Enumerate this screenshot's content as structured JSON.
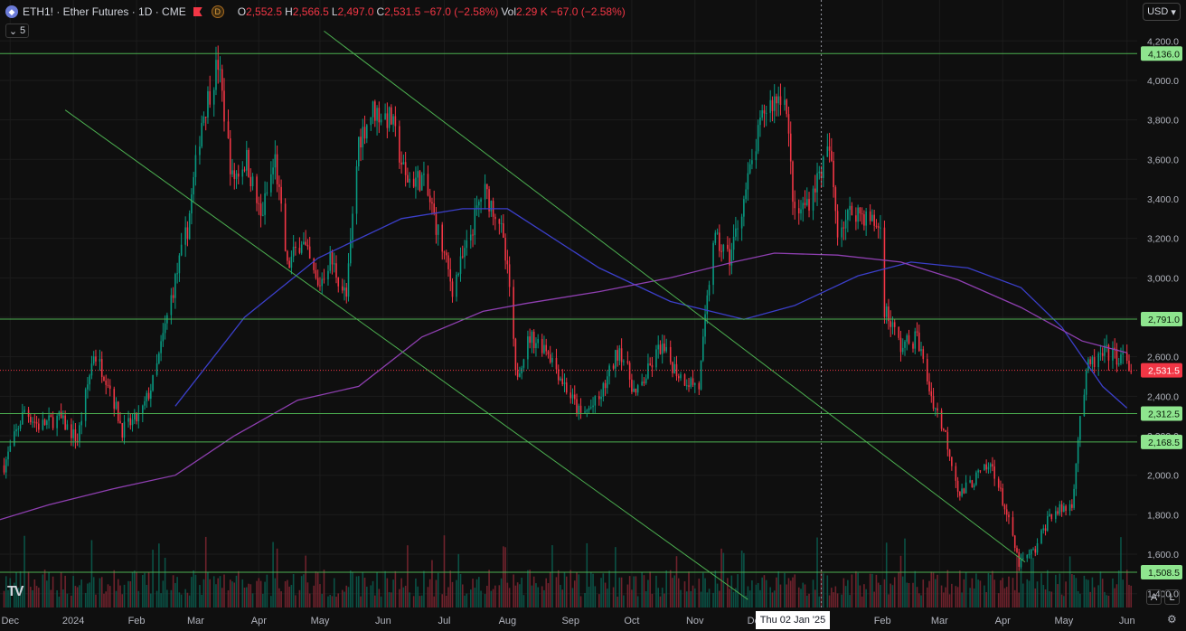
{
  "header": {
    "symbol_title": "ETH1! · Ether Futures · 1D · CME",
    "d_badge": "D",
    "ohlc": [
      {
        "label": "O",
        "value": "2,552.5"
      },
      {
        "label": "H",
        "value": "2,566.5"
      },
      {
        "label": "L",
        "value": "2,497.0"
      },
      {
        "label": "C",
        "value": "2,531.5 −67.0 (−2.58%)"
      },
      {
        "label": "Vol",
        "value": "2.29 K −67.0 (−2.58%)"
      }
    ],
    "collapse_count": "5",
    "currency": "USD"
  },
  "icons": {
    "symbol": "ethereum-icon",
    "flag": "flag-icon",
    "collapse": "chevron-icon",
    "currency": "chevron-down-icon",
    "settings": "gear-icon",
    "logo": "tradingview-logo"
  },
  "buttons": {
    "auto": "A",
    "log": "L"
  },
  "logo_text": "TV",
  "colors": {
    "up": "#089981",
    "down": "#f23645",
    "level": "#4caf50",
    "ma_blue": "#3b3fc9",
    "ma_purple": "#8e3fb0",
    "background": "#0f0f0f"
  },
  "chart_data": {
    "type": "candlestick",
    "y_ticks": [
      1400,
      1600,
      1800,
      2000,
      2200,
      2400,
      2600,
      2800,
      3000,
      3200,
      3400,
      3600,
      3800,
      4000,
      4200
    ],
    "y_tick_labels": [
      "1,400.0",
      "1,600.0",
      "1,800.0",
      "2,000.0",
      "2,200.0",
      "2,400.0",
      "2,600.0",
      "2,800.0",
      "3,000.0",
      "3,200.0",
      "3,400.0",
      "3,600.0",
      "3,800.0",
      "4,000.0",
      "4,200.0"
    ],
    "ylim": [
      1330,
      4270
    ],
    "x_labels": [
      "Dec",
      "2024",
      "Feb",
      "Mar",
      "Apr",
      "May",
      "Jun",
      "Jul",
      "Aug",
      "Sep",
      "Oct",
      "Nov",
      "Dec",
      "Feb",
      "Mar",
      "Apr",
      "May",
      "Jun"
    ],
    "x_label_months": [
      "2023-12",
      "2024-01",
      "2024-02",
      "2024-03",
      "2024-04",
      "2024-05",
      "2024-06",
      "2024-07",
      "2024-08",
      "2024-09",
      "2024-10",
      "2024-11",
      "2024-12",
      "2025-02",
      "2025-03",
      "2025-04",
      "2025-05",
      "2025-06"
    ],
    "x_range": [
      "2023-11-26",
      "2025-06-06"
    ],
    "last_price": {
      "value": 2531.5,
      "label": "2,531.5"
    },
    "levels": [
      {
        "value": 4136.0,
        "label": "4,136.0"
      },
      {
        "value": 2791.0,
        "label": "2,791.0"
      },
      {
        "value": 2312.5,
        "label": "2,312.5"
      },
      {
        "value": 2168.5,
        "label": "2,168.5"
      },
      {
        "value": 1508.5,
        "label": "1,508.5"
      }
    ],
    "trendlines": [
      {
        "from": [
          "2023-12-28",
          3850
        ],
        "to": [
          "2024-11-27",
          1370
        ]
      },
      {
        "from": [
          "2024-05-03",
          4250
        ],
        "to": [
          "2025-04-12",
          1560
        ]
      }
    ],
    "crosshair": {
      "date": "2025-01-02",
      "label": "Thu 02 Jan '25"
    },
    "price_path": [
      [
        "2023-11-28",
        2050
      ],
      [
        "2023-12-08",
        2330
      ],
      [
        "2023-12-15",
        2250
      ],
      [
        "2023-12-25",
        2290
      ],
      [
        "2024-01-03",
        2180
      ],
      [
        "2024-01-11",
        2620
      ],
      [
        "2024-01-18",
        2480
      ],
      [
        "2024-01-25",
        2230
      ],
      [
        "2024-02-03",
        2300
      ],
      [
        "2024-02-10",
        2500
      ],
      [
        "2024-02-18",
        2900
      ],
      [
        "2024-02-26",
        3250
      ],
      [
        "2024-03-04",
        3800
      ],
      [
        "2024-03-12",
        4090
      ],
      [
        "2024-03-19",
        3500
      ],
      [
        "2024-03-26",
        3600
      ],
      [
        "2024-04-02",
        3300
      ],
      [
        "2024-04-09",
        3600
      ],
      [
        "2024-04-15",
        3050
      ],
      [
        "2024-04-22",
        3200
      ],
      [
        "2024-04-30",
        2950
      ],
      [
        "2024-05-06",
        3100
      ],
      [
        "2024-05-14",
        2900
      ],
      [
        "2024-05-20",
        3700
      ],
      [
        "2024-05-27",
        3850
      ],
      [
        "2024-06-05",
        3800
      ],
      [
        "2024-06-12",
        3500
      ],
      [
        "2024-06-20",
        3500
      ],
      [
        "2024-06-25",
        3350
      ],
      [
        "2024-07-05",
        2950
      ],
      [
        "2024-07-12",
        3150
      ],
      [
        "2024-07-20",
        3450
      ],
      [
        "2024-07-28",
        3300
      ],
      [
        "2024-08-02",
        2950
      ],
      [
        "2024-08-05",
        2500
      ],
      [
        "2024-08-12",
        2700
      ],
      [
        "2024-08-20",
        2650
      ],
      [
        "2024-08-27",
        2500
      ],
      [
        "2024-09-06",
        2300
      ],
      [
        "2024-09-15",
        2380
      ],
      [
        "2024-09-25",
        2650
      ],
      [
        "2024-10-03",
        2400
      ],
      [
        "2024-10-15",
        2650
      ],
      [
        "2024-10-25",
        2500
      ],
      [
        "2024-11-03",
        2450
      ],
      [
        "2024-11-10",
        3200
      ],
      [
        "2024-11-18",
        3100
      ],
      [
        "2024-11-25",
        3400
      ],
      [
        "2024-12-05",
        3850
      ],
      [
        "2024-12-15",
        3950
      ],
      [
        "2024-12-20",
        3300
      ],
      [
        "2024-12-27",
        3400
      ],
      [
        "2025-01-06",
        3650
      ],
      [
        "2025-01-10",
        3250
      ],
      [
        "2025-01-18",
        3350
      ],
      [
        "2025-01-25",
        3300
      ],
      [
        "2025-01-31",
        3250
      ],
      [
        "2025-02-02",
        2850
      ],
      [
        "2025-02-10",
        2650
      ],
      [
        "2025-02-18",
        2700
      ],
      [
        "2025-02-25",
        2400
      ],
      [
        "2025-03-04",
        2200
      ],
      [
        "2025-03-11",
        1900
      ],
      [
        "2025-03-20",
        2000
      ],
      [
        "2025-03-27",
        2050
      ],
      [
        "2025-04-03",
        1800
      ],
      [
        "2025-04-09",
        1550
      ],
      [
        "2025-04-17",
        1620
      ],
      [
        "2025-04-24",
        1800
      ],
      [
        "2025-05-05",
        1850
      ],
      [
        "2025-05-09",
        2300
      ],
      [
        "2025-05-13",
        2550
      ],
      [
        "2025-05-22",
        2620
      ],
      [
        "2025-05-30",
        2590
      ],
      [
        "2025-06-03",
        2531.5
      ]
    ],
    "ma_blue": [
      [
        "2024-02-20",
        2350
      ],
      [
        "2024-03-25",
        2800
      ],
      [
        "2024-04-30",
        3100
      ],
      [
        "2024-06-10",
        3300
      ],
      [
        "2024-07-10",
        3350
      ],
      [
        "2024-08-01",
        3350
      ],
      [
        "2024-09-15",
        3050
      ],
      [
        "2024-10-20",
        2880
      ],
      [
        "2024-11-25",
        2790
      ],
      [
        "2024-12-20",
        2860
      ],
      [
        "2025-01-20",
        3010
      ],
      [
        "2025-02-15",
        3080
      ],
      [
        "2025-03-15",
        3050
      ],
      [
        "2025-04-10",
        2950
      ],
      [
        "2025-04-30",
        2750
      ],
      [
        "2025-05-20",
        2450
      ],
      [
        "2025-06-01",
        2340
      ]
    ],
    "ma_purple": [
      [
        "2023-11-26",
        1775
      ],
      [
        "2023-12-20",
        1850
      ],
      [
        "2024-01-20",
        1930
      ],
      [
        "2024-02-20",
        2000
      ],
      [
        "2024-03-20",
        2200
      ],
      [
        "2024-04-20",
        2380
      ],
      [
        "2024-05-20",
        2450
      ],
      [
        "2024-06-20",
        2700
      ],
      [
        "2024-07-20",
        2830
      ],
      [
        "2024-08-10",
        2870
      ],
      [
        "2024-09-15",
        2930
      ],
      [
        "2024-10-20",
        3000
      ],
      [
        "2024-11-20",
        3080
      ],
      [
        "2024-12-10",
        3125
      ],
      [
        "2025-01-10",
        3115
      ],
      [
        "2025-02-10",
        3080
      ],
      [
        "2025-03-10",
        2990
      ],
      [
        "2025-04-10",
        2850
      ],
      [
        "2025-05-10",
        2680
      ],
      [
        "2025-06-01",
        2620
      ]
    ]
  }
}
